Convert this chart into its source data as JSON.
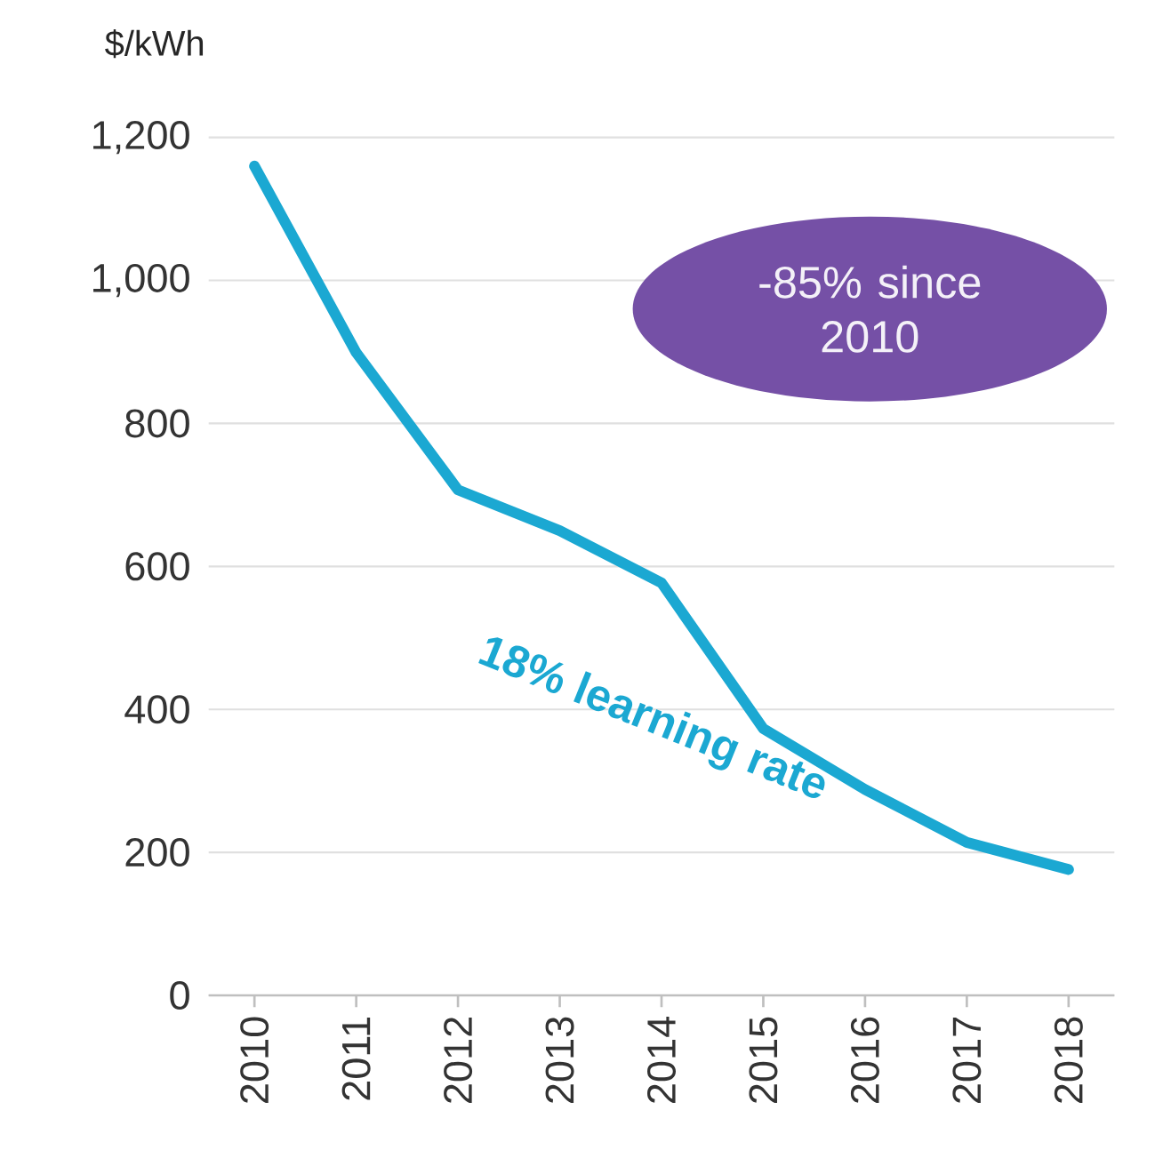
{
  "chart_data": {
    "type": "line",
    "ylabel": "$/kWh",
    "categories": [
      "2010",
      "2011",
      "2012",
      "2013",
      "2014",
      "2015",
      "2016",
      "2017",
      "2018"
    ],
    "series": [
      {
        "color": "#1ba8d2",
        "values": [
          1160,
          899,
          707,
          650,
          577,
          373,
          288,
          214,
          176
        ]
      }
    ],
    "ylim": [
      0,
      1200
    ],
    "yticks": [
      0,
      {
        "value": 200,
        "label": "200"
      },
      {
        "value": 400,
        "label": "400"
      },
      {
        "value": 600,
        "label": "600"
      },
      {
        "value": 800,
        "label": "800"
      },
      {
        "value": 1000,
        "label": "1,000"
      },
      {
        "value": 1200,
        "label": "1,200"
      }
    ],
    "grid": "y",
    "marker": "none",
    "line_style": "solid",
    "annotations": [
      "-85% since 2010",
      "18% learning rate"
    ]
  }
}
